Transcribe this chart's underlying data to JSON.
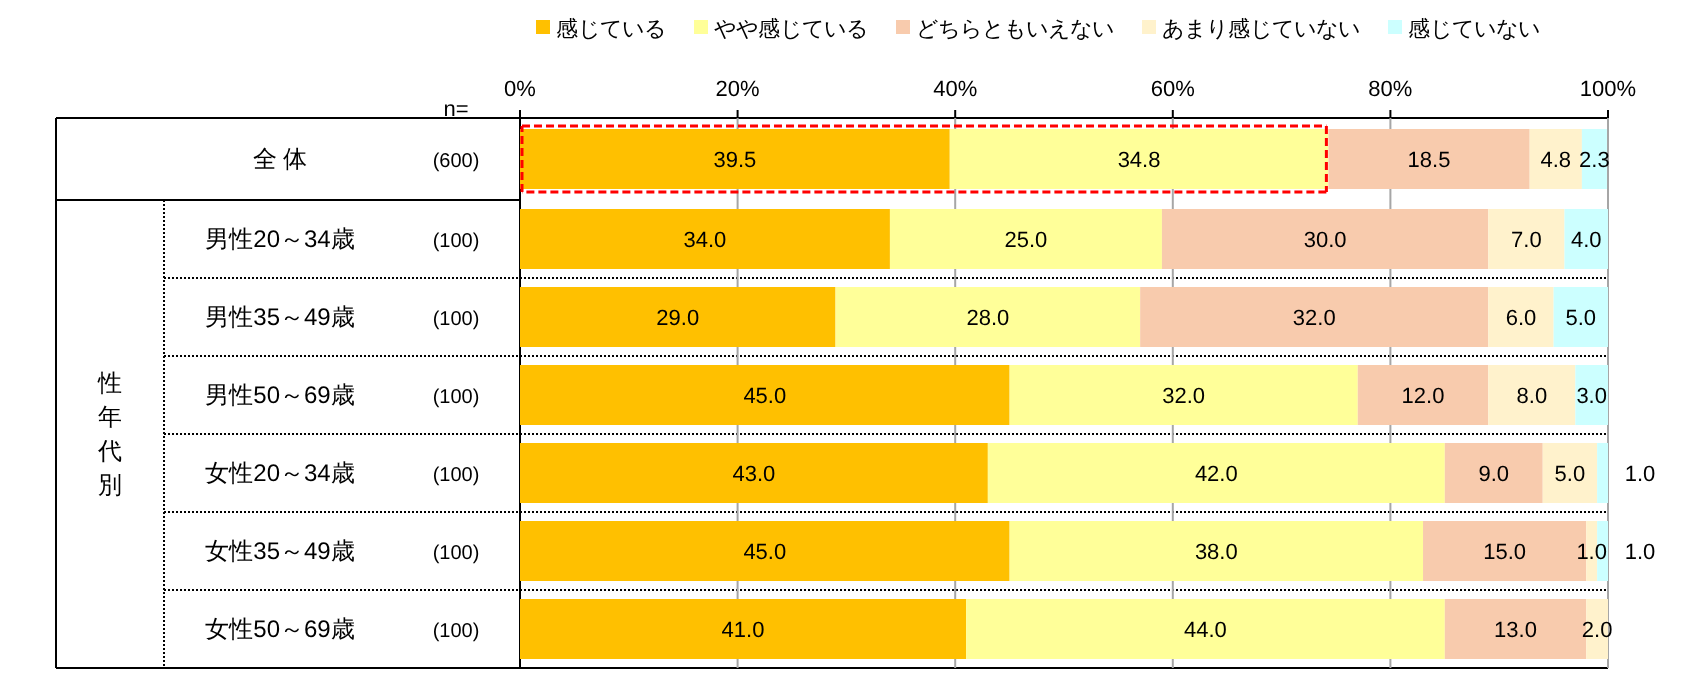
{
  "chart_data": {
    "type": "bar",
    "orientation": "horizontal",
    "stacked": true,
    "categories": [
      "全 体",
      "男性20～34歳",
      "男性35～49歳",
      "男性50～69歳",
      "女性20～34歳",
      "女性35～49歳",
      "女性50～69歳"
    ],
    "series": [
      {
        "name": "感じている",
        "color": "#ffc000",
        "values": [
          39.5,
          34.0,
          29.0,
          45.0,
          43.0,
          45.0,
          41.0
        ],
        "value_labels": [
          "39.5",
          "34.0",
          "29.0",
          "45.0",
          "43.0",
          "45.0",
          "41.0"
        ]
      },
      {
        "name": "やや感じている",
        "color": "#ffff99",
        "values": [
          34.8,
          25.0,
          28.0,
          32.0,
          42.0,
          38.0,
          44.0
        ],
        "value_labels": [
          "34.8",
          "25.0",
          "28.0",
          "32.0",
          "42.0",
          "38.0",
          "44.0"
        ]
      },
      {
        "name": "どちらともいえない",
        "color": "#f8cbad",
        "values": [
          18.5,
          30.0,
          32.0,
          12.0,
          9.0,
          15.0,
          13.0
        ],
        "value_labels": [
          "18.5",
          "30.0",
          "32.0",
          "12.0",
          "9.0",
          "15.0",
          "13.0"
        ]
      },
      {
        "name": "あまり感じていない",
        "color": "#fff2cc",
        "values": [
          4.8,
          7.0,
          6.0,
          8.0,
          5.0,
          1.0,
          2.0
        ],
        "value_labels": [
          "4.8",
          "7.0",
          "6.0",
          "8.0",
          "5.0",
          "1.0",
          "2.0"
        ]
      },
      {
        "name": "感じていない",
        "color": "#ccffff",
        "values": [
          2.3,
          4.0,
          5.0,
          3.0,
          1.0,
          1.0,
          null
        ],
        "value_labels": [
          "2.3",
          "4.0",
          "5.0",
          "3.0",
          "1.0",
          "1.0",
          null
        ]
      }
    ],
    "xlim": [
      0,
      100
    ],
    "xticks": [
      {
        "value": 0,
        "label": "0%"
      },
      {
        "value": 20,
        "label": "20%"
      },
      {
        "value": 40,
        "label": "40%"
      },
      {
        "value": 60,
        "label": "60%"
      },
      {
        "value": 80,
        "label": "80%"
      },
      {
        "value": 100,
        "label": "100%"
      }
    ],
    "grid": "x",
    "legend": "top",
    "annotations": [
      "n=",
      "(600)",
      "(100)",
      "(100)",
      "(100)",
      "(100)",
      "(100)",
      "(100)",
      "性年代別"
    ]
  }
}
